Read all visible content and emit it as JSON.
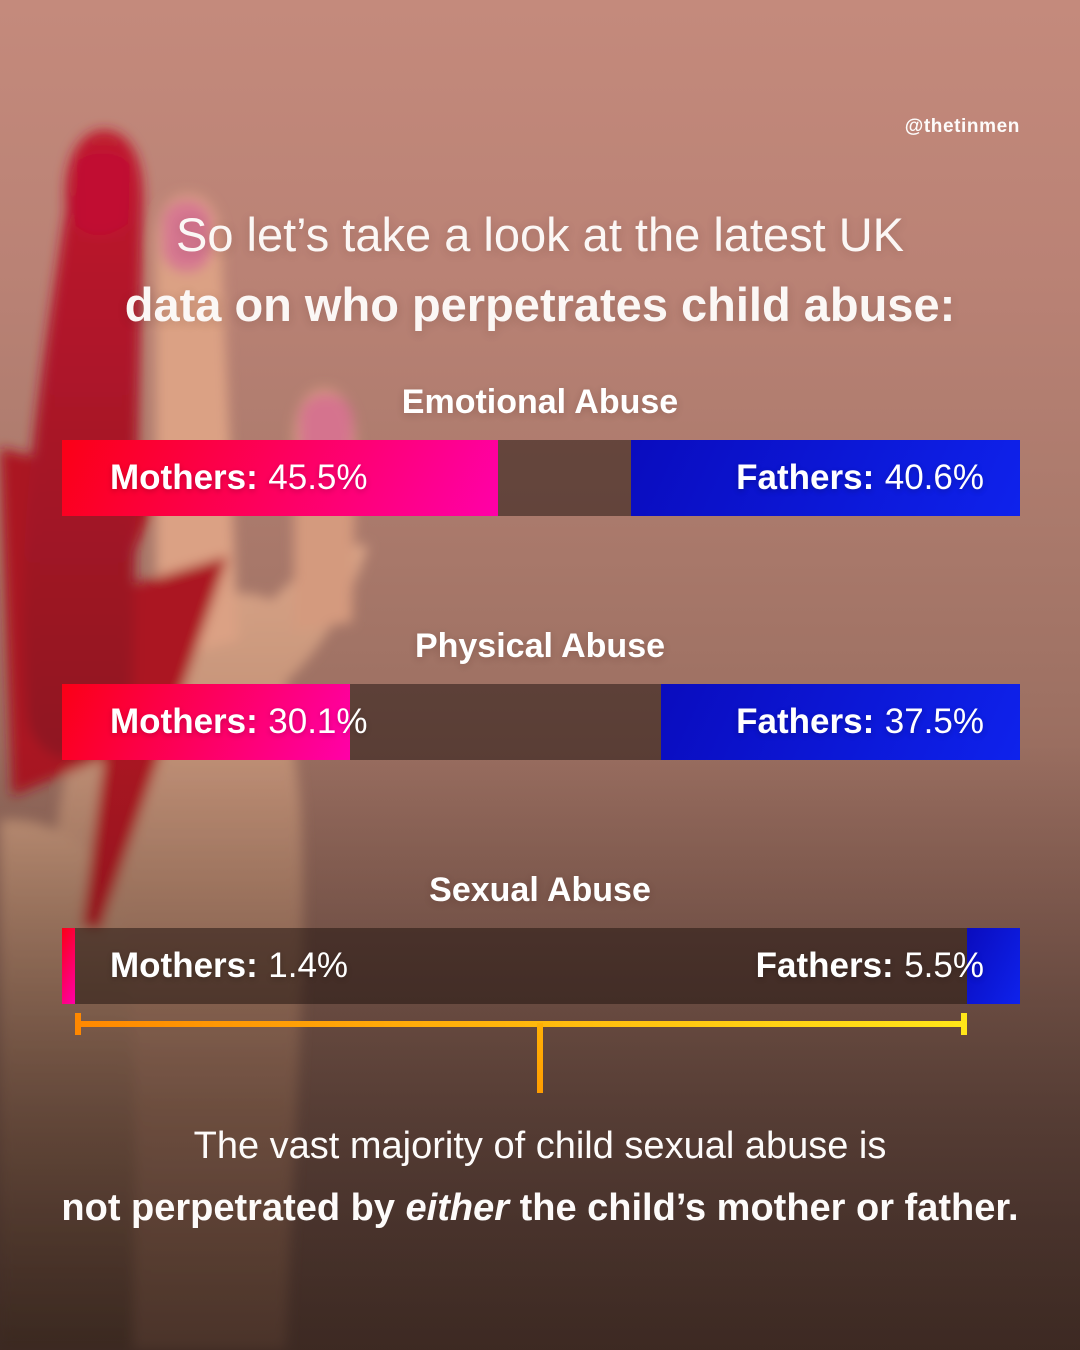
{
  "handle": "@thetinmen",
  "title": {
    "line1": "So let’s take a look at the latest UK",
    "line2": "data on who perpetrates child abuse:"
  },
  "colors": {
    "mothers_gradient": [
      "#fb0016",
      "#ff00a8"
    ],
    "fathers_gradient": [
      "#0a0cbe",
      "#0e22ec"
    ],
    "bar_remainder": "#4e3b34",
    "bracket_gradient": [
      "#ff8800",
      "#ffe619"
    ],
    "text": "#ffffff",
    "background_top": "#c48a7c",
    "background_bottom": "#46332d"
  },
  "chart_data": {
    "type": "bar",
    "unit": "%",
    "categories": [
      "Emotional Abuse",
      "Physical Abuse",
      "Sexual Abuse"
    ],
    "series": [
      {
        "name": "Mothers",
        "values": [
          45.5,
          30.1,
          1.4
        ]
      },
      {
        "name": "Fathers",
        "values": [
          40.6,
          37.5,
          5.5
        ]
      }
    ],
    "layout": "each bar spans 0–100%; mothers segment anchored left, fathers segment anchored right, remainder dark",
    "sections": [
      {
        "title": "Emotional Abuse",
        "mothers_label": "Mothers:",
        "mothers_value": "45.5%",
        "mothers_pct": 45.5,
        "fathers_label": "Fathers:",
        "fathers_value": "40.6%",
        "fathers_pct": 40.6
      },
      {
        "title": "Physical Abuse",
        "mothers_label": "Mothers:",
        "mothers_value": "30.1%",
        "mothers_pct": 30.1,
        "fathers_label": "Fathers:",
        "fathers_value": "37.5%",
        "fathers_pct": 37.5
      },
      {
        "title": "Sexual Abuse",
        "mothers_label": "Mothers:",
        "mothers_value": "1.4%",
        "mothers_pct": 1.4,
        "fathers_label": "Fathers:",
        "fathers_value": "5.5%",
        "fathers_pct": 5.5
      }
    ],
    "annotation": "bracket under Sexual Abuse bar spanning the portion perpetrated by neither parent (93.1%)"
  },
  "footnote": {
    "line1": "The vast majority of child sexual abuse is",
    "line2_prefix": "not perpetrated by ",
    "line2_emphasis": "either",
    "line2_suffix": " the child’s mother or father."
  }
}
